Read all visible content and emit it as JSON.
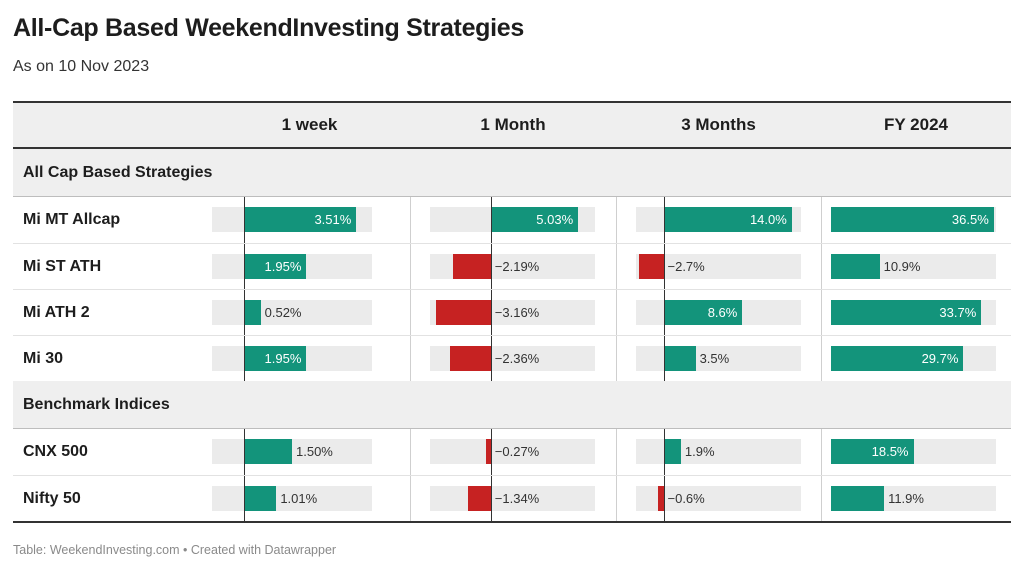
{
  "title": "All-Cap Based WeekendInvesting Strategies",
  "subtitle": "As on 10 Nov 2023",
  "footer": "Table: WeekendInvesting.com • Created with Datawrapper",
  "colors": {
    "positive": "#13947b",
    "negative": "#c62222",
    "track": "#ebebeb",
    "header_bg": "#efefef"
  },
  "chart_data": {
    "type": "table",
    "columns": [
      {
        "label": "1 week",
        "min": -1,
        "max": 4,
        "decimals": 2,
        "unit": "%"
      },
      {
        "label": "1 Month",
        "min": -3.5,
        "max": 6,
        "decimals": 2,
        "unit": "%"
      },
      {
        "label": "3 Months",
        "min": -3,
        "max": 15,
        "decimals": 1,
        "unit": "%"
      },
      {
        "label": "FY 2024",
        "min": 0,
        "max": 37,
        "decimals": 1,
        "unit": "%"
      }
    ],
    "groups": [
      {
        "name": "All Cap Based Strategies",
        "rows": [
          {
            "name": "Mi MT Allcap",
            "values": [
              3.51,
              5.03,
              14.0,
              36.5
            ]
          },
          {
            "name": "Mi ST ATH",
            "values": [
              1.95,
              -2.19,
              -2.7,
              10.9
            ]
          },
          {
            "name": "Mi ATH 2",
            "values": [
              0.52,
              -3.16,
              8.6,
              33.7
            ]
          },
          {
            "name": "Mi 30",
            "values": [
              1.95,
              -2.36,
              3.5,
              29.7
            ]
          }
        ]
      },
      {
        "name": "Benchmark Indices",
        "rows": [
          {
            "name": "CNX 500",
            "values": [
              1.5,
              -0.27,
              1.9,
              18.5
            ]
          },
          {
            "name": "Nifty 50",
            "values": [
              1.01,
              -1.34,
              -0.6,
              11.9
            ]
          }
        ]
      }
    ]
  }
}
